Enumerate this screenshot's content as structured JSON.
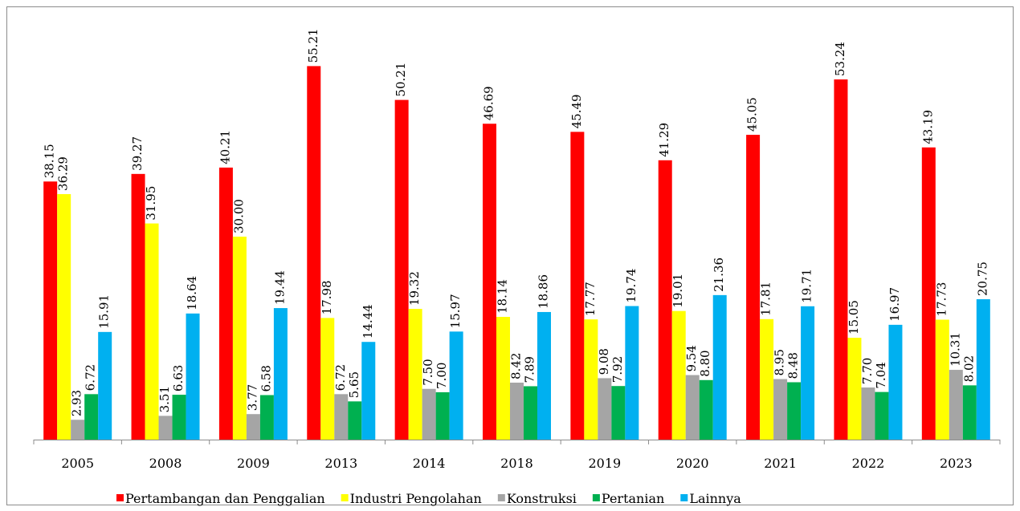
{
  "chart_data": {
    "type": "bar",
    "categories": [
      "2005",
      "2008",
      "2009",
      "2013",
      "2014",
      "2018",
      "2019",
      "2020",
      "2021",
      "2022",
      "2023"
    ],
    "series": [
      {
        "name": "Pertambangan dan Penggalian",
        "color": "#ff0000",
        "values": [
          38.15,
          39.27,
          40.21,
          55.21,
          50.21,
          46.69,
          45.49,
          41.29,
          45.05,
          53.24,
          43.19
        ],
        "value_labels": [
          "38.15",
          "39.27",
          "40.21",
          "55.21",
          "50.21",
          "46.69",
          "45.49",
          "41.29",
          "45.05",
          "53.24",
          "43.19"
        ]
      },
      {
        "name": "Industri Pengolahan",
        "color": "#ffff00",
        "values": [
          36.29,
          31.95,
          30.0,
          17.98,
          19.32,
          18.14,
          17.77,
          19.01,
          17.81,
          15.05,
          17.73
        ],
        "value_labels": [
          "36.29",
          "31.95",
          "30.00",
          "17.98",
          "19.32",
          "18.14",
          "17.77",
          "19.01",
          "17.81",
          "15.05",
          "17.73"
        ]
      },
      {
        "name": "Konstruksi",
        "color": "#a5a5a5",
        "values": [
          2.93,
          3.51,
          3.77,
          6.72,
          7.5,
          8.42,
          9.08,
          9.54,
          8.95,
          7.7,
          10.31
        ],
        "value_labels": [
          "2.93",
          "3.51",
          "3.77",
          "6.72",
          "7.50",
          "8.42",
          "9.08",
          "9.54",
          "8.95",
          "7.70",
          "10.31"
        ]
      },
      {
        "name": "Pertanian",
        "color": "#00b050",
        "values": [
          6.72,
          6.63,
          6.58,
          5.65,
          7.0,
          7.89,
          7.92,
          8.8,
          8.48,
          7.04,
          8.02
        ],
        "value_labels": [
          "6.72",
          "6.63",
          "6.58",
          "5.65",
          "7.00",
          "7.89",
          "7.92",
          "8.80",
          "8.48",
          "7.04",
          "8.02"
        ]
      },
      {
        "name": "Lainnya",
        "color": "#00b0f0",
        "values": [
          15.91,
          18.64,
          19.44,
          14.44,
          15.97,
          18.86,
          19.74,
          21.36,
          19.71,
          16.97,
          20.75
        ],
        "value_labels": [
          "15.91",
          "18.64",
          "19.44",
          "14.44",
          "15.97",
          "18.86",
          "19.74",
          "21.36",
          "19.71",
          "16.97",
          "20.75"
        ]
      }
    ],
    "ylim": [
      0,
      60
    ],
    "legend": "bottom"
  }
}
